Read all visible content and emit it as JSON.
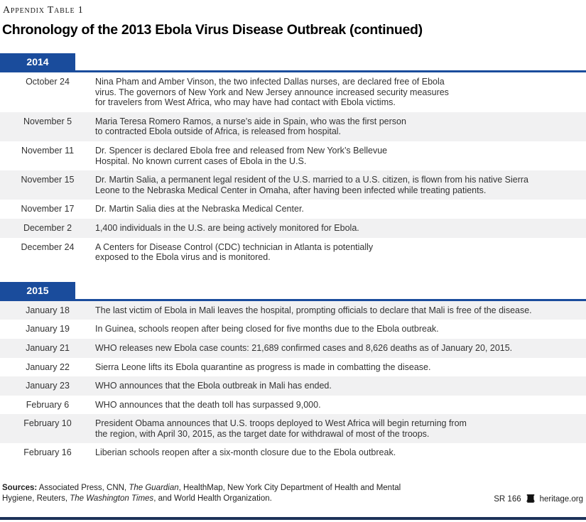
{
  "header": {
    "table_label": "Appendix Table 1",
    "title": "Chronology of the 2013 Ebola Virus Disease Outbreak (continued)"
  },
  "sections": [
    {
      "year": "2014",
      "rows": [
        {
          "date": "October 24",
          "shaded": false,
          "lines": [
            "Nina Pham and Amber Vinson, the two infected Dallas nurses, are declared free of Ebola",
            "virus. The governors of New York and New Jersey announce increased security measures",
            "for travelers from West Africa, who may have had contact with Ebola victims."
          ]
        },
        {
          "date": "November 5",
          "shaded": true,
          "lines": [
            "Maria Teresa Romero Ramos, a nurse’s aide in Spain, who was the first person",
            "to contracted Ebola outside of Africa, is released from hospital."
          ]
        },
        {
          "date": "November 11",
          "shaded": false,
          "lines": [
            "Dr. Spencer is declared Ebola free and released from New York’s Bellevue",
            "Hospital. No known current cases of Ebola in the U.S."
          ]
        },
        {
          "date": "November 15",
          "shaded": true,
          "lines": [
            "Dr. Martin Salia, a permanent legal resident of the U.S. married to a U.S. citizen, is flown from his native Sierra",
            "Leone to the Nebraska Medical Center in Omaha, after having been infected while treating patients."
          ]
        },
        {
          "date": "November 17",
          "shaded": false,
          "lines": [
            "Dr. Martin Salia dies at the Nebraska Medical Center."
          ]
        },
        {
          "date": "December 2",
          "shaded": true,
          "lines": [
            "1,400 individuals in the U.S. are being actively monitored for Ebola."
          ]
        },
        {
          "date": "December 24",
          "shaded": false,
          "lines": [
            "A Centers for Disease Control (CDC) technician in Atlanta is potentially",
            "exposed to the Ebola virus and is monitored."
          ]
        }
      ]
    },
    {
      "year": "2015",
      "rows": [
        {
          "date": "January 18",
          "shaded": true,
          "lines": [
            "The last victim of Ebola in Mali leaves the hospital, prompting officials to declare that Mali is free of the disease."
          ]
        },
        {
          "date": "January 19",
          "shaded": false,
          "lines": [
            "In Guinea, schools reopen after being closed for five months due to the Ebola outbreak."
          ]
        },
        {
          "date": "January 21",
          "shaded": true,
          "lines": [
            "WHO releases new Ebola case counts: 21,689 confirmed cases and 8,626 deaths as of January 20, 2015."
          ]
        },
        {
          "date": "January 22",
          "shaded": false,
          "lines": [
            "Sierra Leone lifts its Ebola quarantine as progress is made in combatting the disease."
          ]
        },
        {
          "date": "January 23",
          "shaded": true,
          "lines": [
            "WHO announces that the Ebola outbreak in Mali has ended."
          ]
        },
        {
          "date": "February 6",
          "shaded": false,
          "lines": [
            "WHO announces that the death toll has surpassed 9,000."
          ]
        },
        {
          "date": "February 10",
          "shaded": true,
          "lines": [
            "President Obama announces that U.S. troops deployed to West Africa will begin returning from",
            "the region, with April 30, 2015, as the target date for withdrawal of most of the troops."
          ]
        },
        {
          "date": "February 16",
          "shaded": false,
          "lines": [
            "Liberian schools reopen after a six-month closure due to the Ebola outbreak."
          ]
        }
      ]
    }
  ],
  "footer": {
    "sources": {
      "line1": [
        "Sources:",
        " Associated Press, CNN, ",
        "The Guardian",
        ", HealthMap, New York City Department of Health and Mental"
      ],
      "line2": [
        "Hygiene, Reuters, ",
        "The Washington Times",
        ", and World Health Organization."
      ]
    },
    "report_id": "SR 166",
    "site": "heritage.org"
  },
  "colors": {
    "accent": "#1A4C9C",
    "shade": "#F1F1F2",
    "bar": "#1C3259"
  }
}
